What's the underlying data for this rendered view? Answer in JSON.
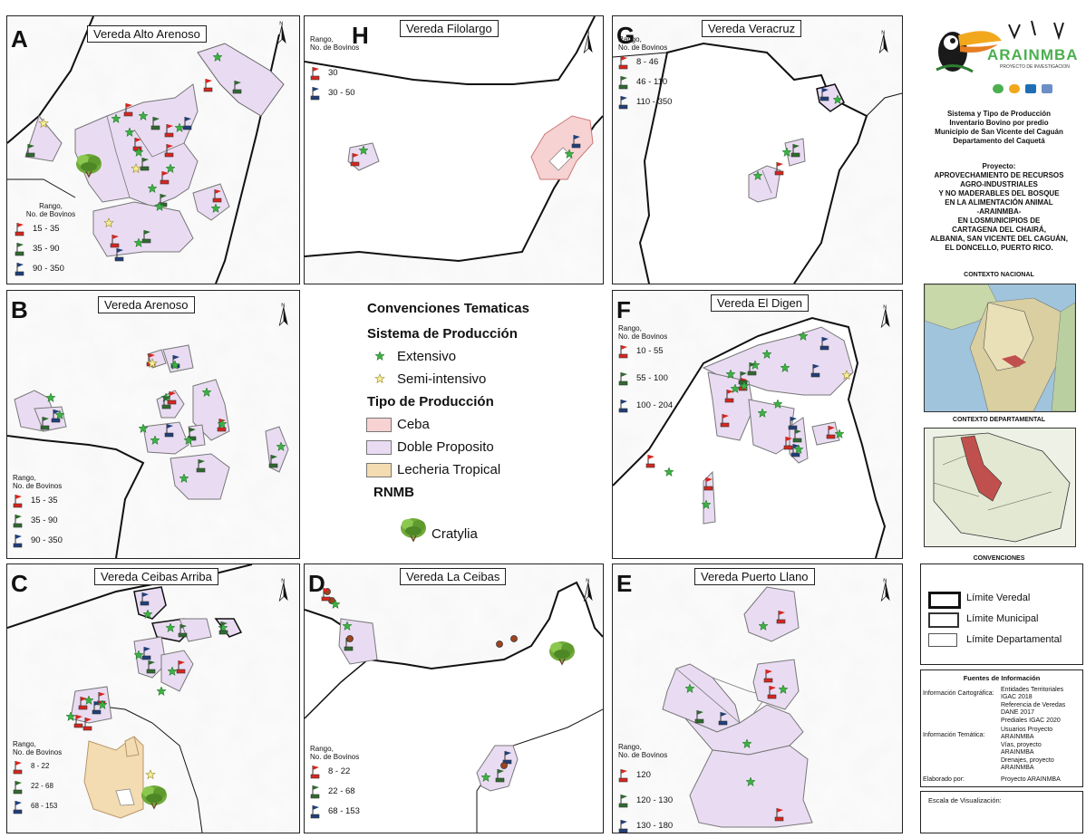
{
  "panels": {
    "A": {
      "letter": "A",
      "title": "Vereda Alto Arenoso",
      "legend": {
        "header": "Rango,\nNo. de Bovinos",
        "ranges": [
          "15 - 35",
          "35 - 90",
          "90 - 350"
        ]
      }
    },
    "H": {
      "letter": "H",
      "title": "Vereda Filolargo",
      "legend": {
        "header": "Rango,\nNo. de Bovinos",
        "ranges": [
          "30",
          "30 - 50"
        ]
      }
    },
    "G": {
      "letter": "G",
      "title": "Vereda Veracruz",
      "legend": {
        "header": "Rango,\nNo. de Bovinos",
        "ranges": [
          "8 - 46",
          "46 - 110",
          "110 - 350"
        ]
      }
    },
    "B": {
      "letter": "B",
      "title": "Vereda Arenoso",
      "legend": {
        "header": "Rango,\nNo. de Bovinos",
        "ranges": [
          "15 - 35",
          "35 - 90",
          "90 - 350"
        ]
      }
    },
    "F": {
      "letter": "F",
      "title": "Vereda El Digen",
      "legend": {
        "header": "Rango,\nNo. de Bovinos",
        "ranges": [
          "10 - 55",
          "55 - 100",
          "100 - 204"
        ]
      }
    },
    "C": {
      "letter": "C",
      "title": "Vereda Ceibas Arriba",
      "legend": {
        "header": "Rango,\nNo. de Bovinos",
        "ranges": [
          "8 - 22",
          "22 - 68",
          "68 - 153"
        ]
      }
    },
    "D": {
      "letter": "D",
      "title": "Vereda La Ceibas",
      "legend": {
        "header": "Rango,\nNo. de Bovinos",
        "ranges": [
          "8 - 22",
          "22 - 68",
          "68 - 153"
        ]
      }
    },
    "E": {
      "letter": "E",
      "title": "Vereda Puerto Llano",
      "legend": {
        "header": "Rango,\nNo. de Bovinos",
        "ranges": [
          "120",
          "120 - 130",
          "130 - 180"
        ]
      }
    }
  },
  "north_label": "N",
  "conventions": {
    "title": "Convenciones Tematicas",
    "system_title": "Sistema de Producción",
    "extensivo": "Extensivo",
    "semi": "Semi-intensivo",
    "type_title": "Tipo de Producción",
    "ceba": "Ceba",
    "doble": "Doble Proposito",
    "lecheria": "Lecheria Tropical",
    "rnmb": "RNMB",
    "cratylia": "Cratylia"
  },
  "colors": {
    "ceba": "#f6d2d2",
    "doble": "#e9dcf2",
    "lecheria": "#f3dcb1",
    "flag_low": "#d7261e",
    "flag_mid": "#2f6a2f",
    "flag_high": "#1f3f7a",
    "star_ext": "#3cb043",
    "star_semi": "#f0e68c"
  },
  "sidebar": {
    "logo_text": "ARAINMBA",
    "logo_sub": "PROYECTO DE INVESTIGACION",
    "title_lines": [
      "Sistema y Tipo de Producción",
      "Inventario Bovino por predio",
      "Municipio de San Vicente del Caguán",
      "Departamento del Caquetá"
    ],
    "project_lines": [
      "Proyecto:",
      "APROVECHAMIENTO DE RECURSOS",
      "AGRO-INDUSTRIALES",
      "Y NO MADERABLES DEL BOSQUE",
      "EN LA ALIMENTACIÓN ANIMAL",
      "-ARAINMBA-",
      "EN LOSMUNICIPIOS DE",
      "CARTAGENA DEL CHAIRÁ,",
      "ALBANIA, SAN VICENTE DEL CAGUÁN,",
      "EL DONCELLO, PUERTO RICO."
    ],
    "contexto_nacional": "CONTEXTO NACIONAL",
    "contexto_departamental": "CONTEXTO DEPARTAMENTAL",
    "convenciones": "CONVENCIONES",
    "limits": [
      "Límite Veredal",
      "Límite Municipal",
      "Límite Departamental"
    ],
    "fuentes_title": "Fuentes de Información",
    "fuentes_cart_label": "Información Cartográfica:",
    "fuentes_cart_value": "Entidades Territoriales\nIGAC 2018\nReferencia de Veredas\nDANE 2017\nPrediales IGAC 2020",
    "fuentes_tem_label": "Información Temática:",
    "fuentes_tem_value": "Usuarios Proyecto\nARAINMBA\nVías, proyecto\nARAINMBA\nDrenajes, proyecto\nARAINMBA",
    "elaborado_label": "Elaborado por:",
    "elaborado_value": "Proyecto ARAINMBA",
    "escala": "Escala de Visualización:"
  }
}
